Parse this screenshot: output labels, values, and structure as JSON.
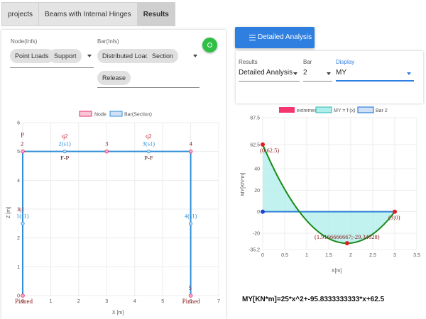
{
  "tabs": [
    {
      "label": "projects"
    },
    {
      "label": "Beams with Internal Hinges"
    },
    {
      "label": "Results"
    }
  ],
  "left": {
    "node_group_label": "Node(Infs)",
    "node_chips": [
      "Point Loads",
      "Support"
    ],
    "bar_group_label": "Bar(Infs)",
    "bar_chips": [
      "Distributed Loads",
      "Section",
      "Release"
    ],
    "fab_icon": "target-icon",
    "accent": "#2fbf45"
  },
  "structure_chart": {
    "legend": [
      "Node",
      "Bar(Section)"
    ],
    "xlabel": "X [m]",
    "ylabel": "Z [m]",
    "x_ticks": [
      "0",
      "1",
      "2",
      "3",
      "4",
      "5",
      "6",
      "7"
    ],
    "y_ticks": [
      "0",
      "1",
      "2",
      "3",
      "4",
      "5",
      "6"
    ],
    "xlim": [
      0,
      7
    ],
    "ylim": [
      0,
      6
    ],
    "nodes": [
      {
        "x": 0,
        "y": 5,
        "label": "2"
      },
      {
        "x": 3,
        "y": 5,
        "label": "3"
      },
      {
        "x": 6,
        "y": 5,
        "label": "4"
      },
      {
        "x": 0,
        "y": 0,
        "label": "1"
      },
      {
        "x": 6,
        "y": 0,
        "label": "5"
      }
    ],
    "bars": [
      {
        "x": 1.5,
        "y": 5,
        "label": "2(s1)"
      },
      {
        "x": 4.5,
        "y": 5,
        "label": "3(s1)"
      },
      {
        "x": 0,
        "y": 2.5,
        "label": "1(s1)"
      },
      {
        "x": 6,
        "y": 2.5,
        "label": "4(s1)"
      }
    ],
    "loads": [
      {
        "x": 1.5,
        "y": 5,
        "label": "q2",
        "sub": "F-P"
      },
      {
        "x": 4.5,
        "y": 5,
        "label": "q2",
        "sub": "P-F"
      },
      {
        "x": 0,
        "y": 2.5,
        "label": "q1"
      }
    ],
    "point_load_label": "P",
    "supports": [
      "Pinned",
      "Pinned"
    ],
    "colors": {
      "node": "#e8336e",
      "bar": "#2f8fd8",
      "load": "#8b1a1a"
    }
  },
  "right": {
    "button_label": "Detailed Analysis",
    "button_icon": "list-icon",
    "results_label": "Results",
    "results_value": "Detailed Analysis",
    "bar_label": "Bar",
    "bar_value": "2",
    "display_label": "Display",
    "display_value": "MY",
    "accent": "#2f7fe0"
  },
  "chart_data": {
    "type": "area",
    "legend": [
      "extremes",
      "MY = f (x)",
      "Bar 2"
    ],
    "xlabel": "X[m]",
    "ylabel": "MY[KN*m]",
    "x_ticks": [
      "0",
      "0.5",
      "1",
      "1.5",
      "2",
      "2.5",
      "3",
      "3.5"
    ],
    "y_ticks": [
      "87.5",
      "62.5",
      "40",
      "20",
      "0",
      "-20",
      "-35.2"
    ],
    "xlim": [
      0,
      3.5
    ],
    "ylim": [
      -35.2,
      87.5
    ],
    "curve": {
      "a": 25,
      "b": -95.8333333333,
      "c": 62.5,
      "x_from": 0,
      "x_to": 3
    },
    "extremes": [
      {
        "x": 0,
        "y": 62.5,
        "label": "(0;62.5)"
      },
      {
        "x": 1.9166666667,
        "y": -29.340278,
        "label": "(1.9166666667;-29.34028)"
      },
      {
        "x": 3,
        "y": 0,
        "label": "(3;0)"
      }
    ],
    "colors": {
      "extremes": "#f5356e",
      "curve": "#1a8a1a",
      "fill": "#aeeeea",
      "bar": "#2f80d8"
    }
  },
  "formula": "MY[KN*m]=25*x^2+-95.8333333333*x+62.5"
}
